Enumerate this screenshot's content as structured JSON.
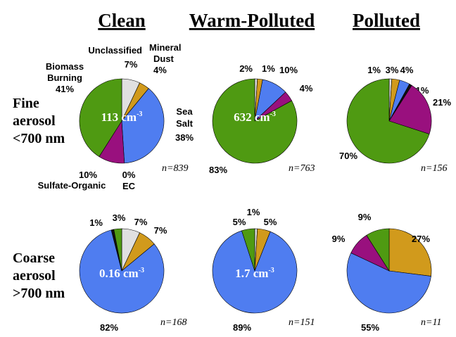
{
  "colors": {
    "Unclassified": "#e0e0e0",
    "Mineral Dust": "#d19a1c",
    "Sea Salt": "#4f7df0",
    "EC": "#111111",
    "Sulfate-Organic": "#99107e",
    "Biomass Burning": "#4f9a12"
  },
  "column_titles": [
    "Clean",
    "Warm-Polluted",
    "Polluted"
  ],
  "row_labels": [
    [
      "Fine",
      "aerosol",
      "<700 nm"
    ],
    [
      "Coarse",
      "aerosol",
      ">700 nm"
    ]
  ],
  "category_labels": {
    "unclassified": "Unclassified",
    "mineral_dust": [
      "Mineral",
      "Dust"
    ],
    "sea_salt": [
      "Sea",
      "Salt"
    ],
    "biomass_burning": [
      "Biomass",
      "Burning"
    ],
    "sulfate_organic": "Sulfate-Organic",
    "ec": "EC"
  },
  "chart_data": [
    {
      "type": "pie",
      "title": "Clean",
      "size_fraction": "Fine aerosol <700 nm",
      "n": "n=839",
      "concentration": "113 cm",
      "concentration_unit_exp": "-3",
      "slices": [
        {
          "label": "Unclassified",
          "value": 7,
          "text": "7%"
        },
        {
          "label": "Mineral Dust",
          "value": 4,
          "text": "4%"
        },
        {
          "label": "Sea Salt",
          "value": 38,
          "text": "38%"
        },
        {
          "label": "EC",
          "value": 0,
          "text": "0%"
        },
        {
          "label": "Sulfate-Organic",
          "value": 10,
          "text": "10%"
        },
        {
          "label": "Biomass Burning",
          "value": 41,
          "text": "41%"
        }
      ]
    },
    {
      "type": "pie",
      "title": "Warm-Polluted",
      "size_fraction": "Fine aerosol <700 nm",
      "n": "n=763",
      "concentration": "632 cm",
      "concentration_unit_exp": "-3",
      "slices": [
        {
          "label": "Unclassified",
          "value": 1,
          "text": "1%"
        },
        {
          "label": "Mineral Dust",
          "value": 2,
          "text": "2%"
        },
        {
          "label": "Sea Salt",
          "value": 10,
          "text": "10%"
        },
        {
          "label": "EC",
          "value": 0,
          "text": ""
        },
        {
          "label": "Sulfate-Organic",
          "value": 4,
          "text": "4%"
        },
        {
          "label": "Biomass Burning",
          "value": 83,
          "text": "83%"
        }
      ]
    },
    {
      "type": "pie",
      "title": "Polluted",
      "size_fraction": "Fine aerosol <700 nm",
      "n": "n=156",
      "concentration": "",
      "concentration_unit_exp": "",
      "slices": [
        {
          "label": "Unclassified",
          "value": 1,
          "text": "1%"
        },
        {
          "label": "Mineral Dust",
          "value": 3,
          "text": "3%"
        },
        {
          "label": "Sea Salt",
          "value": 4,
          "text": "4%"
        },
        {
          "label": "EC",
          "value": 1,
          "text": "1%"
        },
        {
          "label": "Sulfate-Organic",
          "value": 21,
          "text": "21%"
        },
        {
          "label": "Biomass Burning",
          "value": 70,
          "text": "70%"
        }
      ]
    },
    {
      "type": "pie",
      "title": "Clean",
      "size_fraction": "Coarse aerosol >700 nm",
      "n": "n=168",
      "concentration": "0.16 cm",
      "concentration_unit_exp": "-3",
      "slices": [
        {
          "label": "Unclassified",
          "value": 7,
          "text": "7%"
        },
        {
          "label": "Mineral Dust",
          "value": 7,
          "text": "7%"
        },
        {
          "label": "Sea Salt",
          "value": 82,
          "text": "82%"
        },
        {
          "label": "EC",
          "value": 1,
          "text": "1%"
        },
        {
          "label": "Sulfate-Organic",
          "value": 0,
          "text": ""
        },
        {
          "label": "Biomass Burning",
          "value": 3,
          "text": "3%"
        }
      ]
    },
    {
      "type": "pie",
      "title": "Warm-Polluted",
      "size_fraction": "Coarse aerosol >700 nm",
      "n": "n=151",
      "concentration": "1.7 cm",
      "concentration_unit_exp": "-3",
      "slices": [
        {
          "label": "Unclassified",
          "value": 1,
          "text": "1%"
        },
        {
          "label": "Mineral Dust",
          "value": 5,
          "text": "5%"
        },
        {
          "label": "Sea Salt",
          "value": 89,
          "text": "89%"
        },
        {
          "label": "EC",
          "value": 0,
          "text": ""
        },
        {
          "label": "Sulfate-Organic",
          "value": 0,
          "text": ""
        },
        {
          "label": "Biomass Burning",
          "value": 5,
          "text": "5%"
        }
      ]
    },
    {
      "type": "pie",
      "title": "Polluted",
      "size_fraction": "Coarse aerosol >700 nm",
      "n": "n=11",
      "concentration": "",
      "concentration_unit_exp": "",
      "slices": [
        {
          "label": "Unclassified",
          "value": 0,
          "text": ""
        },
        {
          "label": "Mineral Dust",
          "value": 27,
          "text": "27%"
        },
        {
          "label": "Sea Salt",
          "value": 55,
          "text": "55%"
        },
        {
          "label": "EC",
          "value": 0,
          "text": ""
        },
        {
          "label": "Sulfate-Organic",
          "value": 9,
          "text": "9%"
        },
        {
          "label": "Biomass Burning",
          "value": 9,
          "text": "9%"
        }
      ]
    }
  ]
}
